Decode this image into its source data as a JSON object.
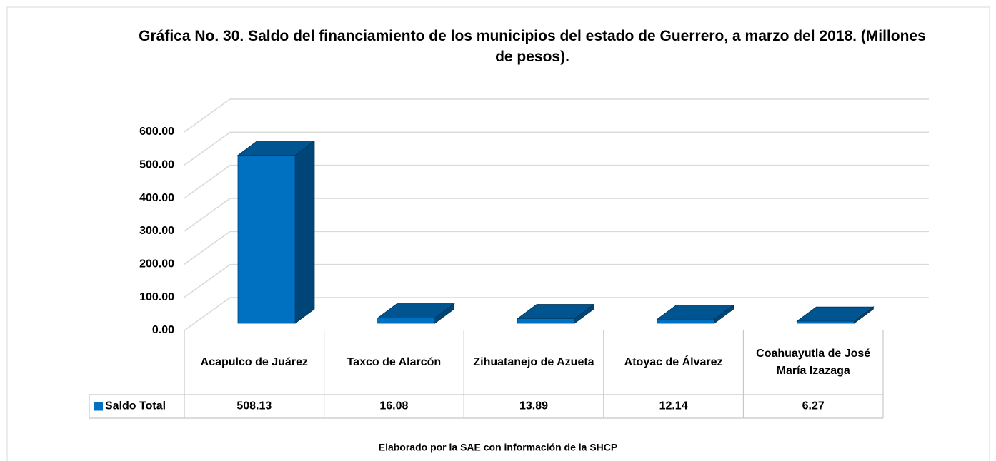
{
  "chart_data": {
    "type": "bar3d",
    "title": "Gráfica No. 30. Saldo del financiamiento de los municipios del estado de  Guerrero, a  marzo del 2018. (Millones de pesos).",
    "categories": [
      "Acapulco de Juárez",
      "Taxco de Alarcón",
      "Zihuatanejo de Azueta",
      "Atoyac de Álvarez",
      "Coahuayutla de José María Izazaga"
    ],
    "series": [
      {
        "name": "Saldo Total",
        "color": "#0070c0",
        "values": [
          508.13,
          16.08,
          13.89,
          12.14,
          6.27
        ]
      }
    ],
    "ylim": [
      0,
      600
    ],
    "yticks": [
      {
        "value": 0,
        "label": "0.00"
      },
      {
        "value": 100,
        "label": "100.00"
      },
      {
        "value": 200,
        "label": "200.00"
      },
      {
        "value": 300,
        "label": "300.00"
      },
      {
        "value": 400,
        "label": "400.00"
      },
      {
        "value": 500,
        "label": "500.00"
      },
      {
        "value": 600,
        "label": "600.00"
      }
    ],
    "grid": true,
    "source": "Elaborado por la SAE con información de  la SHCP"
  }
}
